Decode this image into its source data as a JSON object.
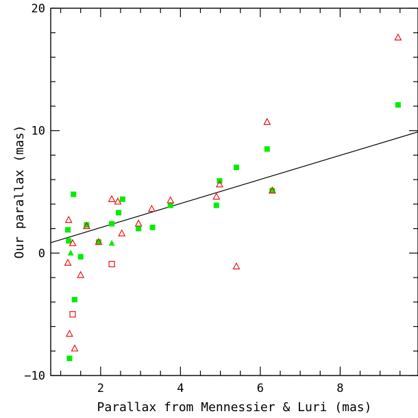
{
  "chart_data": {
    "type": "scatter",
    "title": "",
    "xlabel": "Parallax from Mennessier & Luri (mas)",
    "ylabel": "Our parallax (mas)",
    "xlim": [
      0.75,
      9.95
    ],
    "ylim": [
      -10,
      20
    ],
    "x_major_ticks": [
      2,
      4,
      6,
      8
    ],
    "x_tick_labels": [
      "2",
      "4",
      "6",
      "8"
    ],
    "y_major_ticks": [
      -10,
      0,
      10,
      20
    ],
    "y_tick_labels": [
      "−10",
      "0",
      "10",
      "20"
    ],
    "grid": false,
    "colors": {
      "green": "#00ee00",
      "red": "#ee1111",
      "axis": "#000000",
      "fit": "#000000"
    },
    "fit_line": {
      "x": [
        0.75,
        9.95
      ],
      "y": [
        0.85,
        9.9
      ]
    },
    "series": [
      {
        "marker": "filled-square",
        "color": "#00ee00",
        "points": [
          {
            "x": 1.32,
            "y": 4.8
          },
          {
            "x": 1.18,
            "y": 1.9
          },
          {
            "x": 1.2,
            "y": 1.0
          },
          {
            "x": 1.5,
            "y": -0.3
          },
          {
            "x": 1.35,
            "y": -3.8
          },
          {
            "x": 1.22,
            "y": -8.6
          },
          {
            "x": 1.65,
            "y": 2.3
          },
          {
            "x": 1.95,
            "y": 0.9
          },
          {
            "x": 2.28,
            "y": 2.4
          },
          {
            "x": 2.45,
            "y": 3.3
          },
          {
            "x": 2.55,
            "y": 4.4
          },
          {
            "x": 2.95,
            "y": 2.0
          },
          {
            "x": 3.3,
            "y": 2.1
          },
          {
            "x": 3.75,
            "y": 3.9
          },
          {
            "x": 4.9,
            "y": 3.9
          },
          {
            "x": 4.98,
            "y": 5.9
          },
          {
            "x": 5.4,
            "y": 7.0
          },
          {
            "x": 6.17,
            "y": 8.5
          },
          {
            "x": 6.3,
            "y": 5.1
          },
          {
            "x": 9.45,
            "y": 12.1
          }
        ]
      },
      {
        "marker": "filled-triangle",
        "color": "#00ee00",
        "points": [
          {
            "x": 1.25,
            "y": 0.0
          },
          {
            "x": 1.65,
            "y": 2.3
          },
          {
            "x": 2.28,
            "y": 0.8
          }
        ]
      },
      {
        "marker": "open-triangle",
        "color": "#ee1111",
        "points": [
          {
            "x": 1.2,
            "y": 2.7
          },
          {
            "x": 1.18,
            "y": -0.8
          },
          {
            "x": 1.3,
            "y": 0.8
          },
          {
            "x": 1.5,
            "y": -1.8
          },
          {
            "x": 1.22,
            "y": -6.6
          },
          {
            "x": 1.35,
            "y": -7.8
          },
          {
            "x": 1.65,
            "y": 2.2
          },
          {
            "x": 1.95,
            "y": 0.9
          },
          {
            "x": 2.28,
            "y": 4.4
          },
          {
            "x": 2.43,
            "y": 4.2
          },
          {
            "x": 2.53,
            "y": 1.6
          },
          {
            "x": 2.95,
            "y": 2.4
          },
          {
            "x": 3.28,
            "y": 3.6
          },
          {
            "x": 3.75,
            "y": 4.3
          },
          {
            "x": 4.9,
            "y": 4.6
          },
          {
            "x": 4.98,
            "y": 5.6
          },
          {
            "x": 5.4,
            "y": -1.1
          },
          {
            "x": 6.17,
            "y": 10.7
          },
          {
            "x": 6.3,
            "y": 5.1
          },
          {
            "x": 9.45,
            "y": 17.6
          }
        ]
      },
      {
        "marker": "open-square",
        "color": "#ee1111",
        "points": [
          {
            "x": 1.3,
            "y": -5.0
          },
          {
            "x": 2.28,
            "y": -0.9
          }
        ]
      }
    ]
  }
}
